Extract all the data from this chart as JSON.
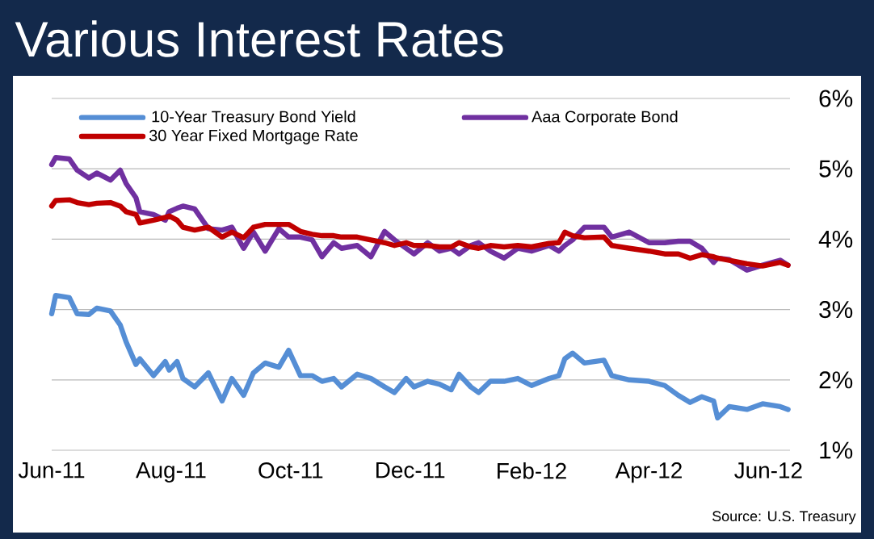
{
  "chart_data": {
    "type": "line",
    "title": "Various Interest Rates",
    "x": [
      "2011-06-01",
      "2011-06-03",
      "2011-06-10",
      "2011-06-14",
      "2011-06-20",
      "2011-06-24",
      "2011-07-01",
      "2011-07-06",
      "2011-07-09",
      "2011-07-14",
      "2011-07-16",
      "2011-07-23",
      "2011-07-29",
      "2011-07-31",
      "2011-08-04",
      "2011-08-07",
      "2011-08-13",
      "2011-08-20",
      "2011-08-27",
      "2011-09-01",
      "2011-09-07",
      "2011-09-12",
      "2011-09-18",
      "2011-09-25",
      "2011-09-30",
      "2011-10-06",
      "2011-10-12",
      "2011-10-17",
      "2011-10-23",
      "2011-10-27",
      "2011-11-04",
      "2011-11-11",
      "2011-11-18",
      "2011-11-23",
      "2011-11-29",
      "2011-12-03",
      "2011-12-10",
      "2011-12-16",
      "2011-12-22",
      "2011-12-26",
      "2012-01-01",
      "2012-01-05",
      "2012-01-11",
      "2012-01-18",
      "2012-01-25",
      "2012-02-01",
      "2012-02-10",
      "2012-02-15",
      "2012-02-18",
      "2012-02-22",
      "2012-02-28",
      "2012-03-09",
      "2012-03-13",
      "2012-03-22",
      "2012-04-01",
      "2012-04-09",
      "2012-04-16",
      "2012-04-22",
      "2012-04-28",
      "2012-05-04",
      "2012-05-06",
      "2012-05-12",
      "2012-05-21",
      "2012-05-29",
      "2012-06-07",
      "2012-06-11"
    ],
    "series": [
      {
        "name": "10-Year Treasury Bond Yield",
        "color": "#558ed5",
        "values": [
          2.94,
          3.2,
          3.17,
          2.94,
          2.93,
          3.02,
          2.98,
          2.78,
          2.54,
          2.22,
          2.3,
          2.06,
          2.26,
          2.14,
          2.26,
          2.02,
          1.9,
          2.1,
          1.7,
          2.02,
          1.78,
          2.1,
          2.24,
          2.18,
          2.42,
          2.06,
          2.06,
          1.98,
          2.02,
          1.9,
          2.08,
          2.02,
          1.9,
          1.82,
          2.02,
          1.9,
          1.98,
          1.94,
          1.86,
          2.08,
          1.9,
          1.82,
          1.98,
          1.98,
          2.02,
          1.92,
          2.02,
          2.06,
          2.3,
          2.38,
          2.24,
          2.28,
          2.06,
          2.0,
          1.98,
          1.92,
          1.78,
          1.68,
          1.76,
          1.7,
          1.46,
          1.62,
          1.58,
          1.66,
          1.62,
          1.58
        ]
      },
      {
        "name": "Aaa Corporate Bond",
        "color": "#7030a0",
        "values": [
          5.06,
          5.16,
          5.14,
          4.98,
          4.87,
          4.94,
          4.84,
          4.98,
          4.79,
          4.59,
          4.39,
          4.35,
          4.27,
          4.39,
          4.44,
          4.47,
          4.43,
          4.15,
          4.13,
          4.17,
          3.87,
          4.1,
          3.83,
          4.15,
          4.03,
          4.03,
          3.99,
          3.75,
          3.95,
          3.87,
          3.91,
          3.75,
          4.11,
          3.99,
          3.87,
          3.79,
          3.95,
          3.83,
          3.87,
          3.79,
          3.91,
          3.95,
          3.83,
          3.73,
          3.87,
          3.83,
          3.91,
          3.83,
          3.91,
          3.99,
          4.17,
          4.17,
          4.03,
          4.1,
          3.95,
          3.95,
          3.97,
          3.97,
          3.87,
          3.67,
          3.73,
          3.71,
          3.56,
          3.63,
          3.7,
          3.63
        ]
      },
      {
        "name": "30 Year Fixed Mortgage Rate",
        "color": "#c00000",
        "values": [
          4.47,
          4.55,
          4.56,
          4.52,
          4.49,
          4.51,
          4.52,
          4.47,
          4.39,
          4.35,
          4.23,
          4.27,
          4.31,
          4.33,
          4.27,
          4.17,
          4.13,
          4.17,
          4.03,
          4.1,
          4.02,
          4.17,
          4.21,
          4.21,
          4.21,
          4.11,
          4.07,
          4.05,
          4.05,
          4.03,
          4.03,
          3.99,
          3.95,
          3.91,
          3.95,
          3.91,
          3.91,
          3.89,
          3.89,
          3.95,
          3.89,
          3.87,
          3.91,
          3.89,
          3.91,
          3.89,
          3.94,
          3.95,
          4.1,
          4.05,
          4.02,
          4.03,
          3.91,
          3.87,
          3.83,
          3.79,
          3.79,
          3.73,
          3.78,
          3.75,
          3.73,
          3.7,
          3.65,
          3.62,
          3.67,
          3.63
        ]
      }
    ],
    "xlim": [
      "2011-06-01",
      "2012-06-12"
    ],
    "xticks": [
      {
        "value": "2011-06-01",
        "label": "Jun-11"
      },
      {
        "value": "2011-08-01",
        "label": "Aug-11"
      },
      {
        "value": "2011-10-01",
        "label": "Oct-11"
      },
      {
        "value": "2011-12-01",
        "label": "Dec-11"
      },
      {
        "value": "2012-02-01",
        "label": "Feb-12"
      },
      {
        "value": "2012-04-01",
        "label": "Apr-12"
      },
      {
        "value": "2012-06-01",
        "label": "Jun-12"
      }
    ],
    "ylim": [
      1,
      6
    ],
    "yticks": [
      {
        "value": 1,
        "label": "1%"
      },
      {
        "value": 2,
        "label": "2%"
      },
      {
        "value": 3,
        "label": "3%"
      },
      {
        "value": 4,
        "label": "4%"
      },
      {
        "value": 5,
        "label": "5%"
      },
      {
        "value": 6,
        "label": "6%"
      }
    ],
    "grid": "y",
    "legend": "top",
    "annotations": [
      "Source:  U.S. Treasury"
    ]
  }
}
